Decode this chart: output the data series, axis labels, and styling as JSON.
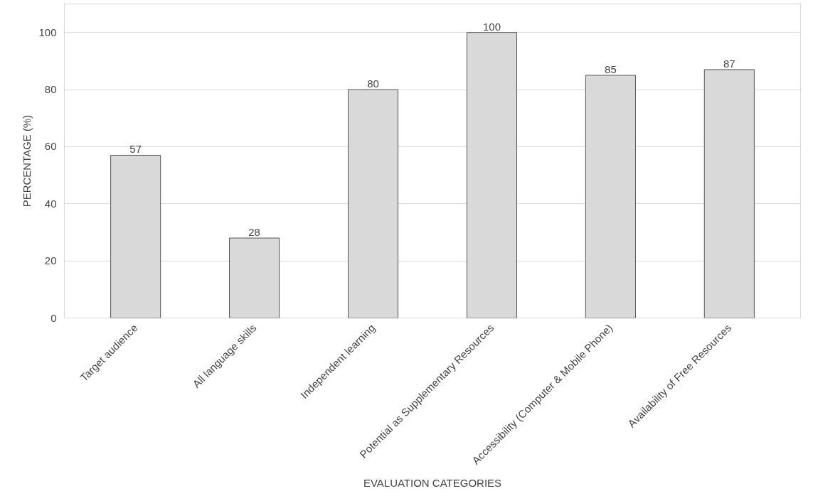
{
  "chart_data": {
    "type": "bar",
    "xlabel": "EVALUATION CATEGORIES",
    "ylabel": "PERCENTAGE (%)",
    "categories": [
      "Target audience",
      "All language skills",
      "Independent learning",
      "Potential as Supplementary Resources",
      "Accessibility (Computer & Mobile Phone)",
      "Availability of Free Resources"
    ],
    "values": [
      57,
      28,
      80,
      100,
      85,
      87
    ],
    "color": "#d9d9d9",
    "ylim": [
      0,
      110
    ],
    "yticks": [
      0,
      20,
      40,
      60,
      80,
      100
    ],
    "grid": "y",
    "data_labels": true
  }
}
